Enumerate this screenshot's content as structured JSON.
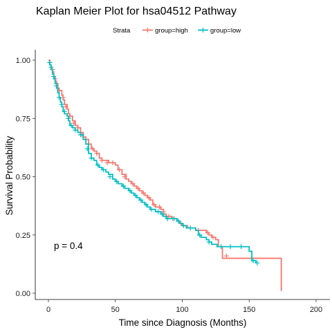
{
  "chart_data": {
    "type": "line",
    "subtype": "kaplan-meier-step",
    "title": "Kaplan Meier Plot for hsa04512 Pathway",
    "xlabel": "Time since Diagnosis (Months)",
    "ylabel": "Survival Probability",
    "xlim": [
      0,
      200
    ],
    "ylim": [
      0,
      1
    ],
    "x_ticks": [
      "0",
      "50",
      "100",
      "150",
      "200"
    ],
    "y_ticks": [
      "0.00",
      "0.25",
      "0.50",
      "0.75",
      "1.00"
    ],
    "x_tick_values": [
      0,
      50,
      100,
      150,
      200
    ],
    "y_tick_values": [
      0,
      0.25,
      0.5,
      0.75,
      1
    ],
    "grid": false,
    "legend_title": "Strata",
    "legend_position": "top",
    "annotation": "p = 0.4",
    "series": [
      {
        "name": "group=high",
        "color": "#F8766D",
        "steps": [
          [
            0,
            1.0
          ],
          [
            1,
            0.98
          ],
          [
            2,
            0.96
          ],
          [
            3,
            0.95
          ],
          [
            4,
            0.93
          ],
          [
            5,
            0.91
          ],
          [
            6,
            0.9
          ],
          [
            7,
            0.88
          ],
          [
            8,
            0.87
          ],
          [
            10,
            0.85
          ],
          [
            11,
            0.83
          ],
          [
            12,
            0.81
          ],
          [
            14,
            0.79
          ],
          [
            15,
            0.77
          ],
          [
            16,
            0.76
          ],
          [
            18,
            0.74
          ],
          [
            20,
            0.72
          ],
          [
            22,
            0.71
          ],
          [
            24,
            0.69
          ],
          [
            26,
            0.67
          ],
          [
            28,
            0.66
          ],
          [
            30,
            0.64
          ],
          [
            32,
            0.62
          ],
          [
            34,
            0.61
          ],
          [
            36,
            0.6
          ],
          [
            38,
            0.58
          ],
          [
            40,
            0.57
          ],
          [
            45,
            0.56
          ],
          [
            50,
            0.55
          ],
          [
            52,
            0.53
          ],
          [
            55,
            0.51
          ],
          [
            58,
            0.49
          ],
          [
            60,
            0.48
          ],
          [
            62,
            0.47
          ],
          [
            64,
            0.46
          ],
          [
            66,
            0.45
          ],
          [
            68,
            0.44
          ],
          [
            70,
            0.43
          ],
          [
            72,
            0.42
          ],
          [
            74,
            0.41
          ],
          [
            76,
            0.4
          ],
          [
            78,
            0.38
          ],
          [
            80,
            0.37
          ],
          [
            84,
            0.36
          ],
          [
            86,
            0.34
          ],
          [
            88,
            0.33
          ],
          [
            92,
            0.32
          ],
          [
            96,
            0.31
          ],
          [
            98,
            0.3
          ],
          [
            100,
            0.29
          ],
          [
            104,
            0.28
          ],
          [
            110,
            0.27
          ],
          [
            116,
            0.27
          ],
          [
            118,
            0.26
          ],
          [
            120,
            0.25
          ],
          [
            122,
            0.24
          ],
          [
            125,
            0.23
          ],
          [
            127,
            0.2
          ],
          [
            130,
            0.15
          ],
          [
            145,
            0.15
          ],
          [
            150,
            0.15
          ],
          [
            174,
            0.15
          ],
          [
            174,
            0.01
          ]
        ],
        "censored": [
          [
            1,
            0.99
          ],
          [
            3,
            0.96
          ],
          [
            5,
            0.92
          ],
          [
            8,
            0.87
          ],
          [
            11,
            0.84
          ],
          [
            13,
            0.8
          ],
          [
            16,
            0.76
          ],
          [
            19,
            0.73
          ],
          [
            22,
            0.71
          ],
          [
            25,
            0.68
          ],
          [
            30,
            0.64
          ],
          [
            33,
            0.62
          ],
          [
            36,
            0.6
          ],
          [
            40,
            0.57
          ],
          [
            44,
            0.56
          ],
          [
            48,
            0.56
          ],
          [
            53,
            0.53
          ],
          [
            57,
            0.5
          ],
          [
            63,
            0.47
          ],
          [
            67,
            0.45
          ],
          [
            71,
            0.43
          ],
          [
            75,
            0.41
          ],
          [
            79,
            0.38
          ],
          [
            83,
            0.37
          ],
          [
            86,
            0.35
          ],
          [
            90,
            0.33
          ],
          [
            94,
            0.32
          ],
          [
            99,
            0.3
          ],
          [
            106,
            0.28
          ],
          [
            112,
            0.27
          ],
          [
            119,
            0.26
          ],
          [
            123,
            0.24
          ],
          [
            133,
            0.16
          ]
        ]
      },
      {
        "name": "group=low",
        "color": "#00BFC4",
        "steps": [
          [
            0,
            0.99
          ],
          [
            1,
            0.98
          ],
          [
            2,
            0.96
          ],
          [
            3,
            0.94
          ],
          [
            4,
            0.92
          ],
          [
            5,
            0.9
          ],
          [
            6,
            0.88
          ],
          [
            7,
            0.86
          ],
          [
            8,
            0.84
          ],
          [
            9,
            0.82
          ],
          [
            10,
            0.8
          ],
          [
            11,
            0.78
          ],
          [
            12,
            0.77
          ],
          [
            14,
            0.76
          ],
          [
            15,
            0.74
          ],
          [
            16,
            0.72
          ],
          [
            18,
            0.71
          ],
          [
            20,
            0.7
          ],
          [
            22,
            0.69
          ],
          [
            24,
            0.68
          ],
          [
            26,
            0.66
          ],
          [
            28,
            0.64
          ],
          [
            30,
            0.6
          ],
          [
            32,
            0.58
          ],
          [
            34,
            0.57
          ],
          [
            36,
            0.55
          ],
          [
            38,
            0.54
          ],
          [
            40,
            0.53
          ],
          [
            43,
            0.52
          ],
          [
            45,
            0.51
          ],
          [
            48,
            0.49
          ],
          [
            50,
            0.48
          ],
          [
            52,
            0.47
          ],
          [
            55,
            0.46
          ],
          [
            57,
            0.45
          ],
          [
            60,
            0.44
          ],
          [
            62,
            0.43
          ],
          [
            64,
            0.42
          ],
          [
            66,
            0.41
          ],
          [
            68,
            0.4
          ],
          [
            70,
            0.39
          ],
          [
            72,
            0.38
          ],
          [
            74,
            0.37
          ],
          [
            76,
            0.36
          ],
          [
            80,
            0.35
          ],
          [
            84,
            0.34
          ],
          [
            86,
            0.33
          ],
          [
            88,
            0.32
          ],
          [
            96,
            0.31
          ],
          [
            98,
            0.3
          ],
          [
            100,
            0.29
          ],
          [
            103,
            0.28
          ],
          [
            110,
            0.27
          ],
          [
            112,
            0.25
          ],
          [
            114,
            0.24
          ],
          [
            118,
            0.23
          ],
          [
            120,
            0.22
          ],
          [
            122,
            0.21
          ],
          [
            126,
            0.2
          ],
          [
            130,
            0.2
          ],
          [
            140,
            0.2
          ],
          [
            150,
            0.2
          ],
          [
            150,
            0.18
          ],
          [
            152,
            0.14
          ],
          [
            155,
            0.13
          ]
        ],
        "censored": [
          [
            1,
            0.99
          ],
          [
            2,
            0.97
          ],
          [
            4,
            0.93
          ],
          [
            6,
            0.89
          ],
          [
            8,
            0.84
          ],
          [
            10,
            0.81
          ],
          [
            12,
            0.78
          ],
          [
            15,
            0.75
          ],
          [
            17,
            0.72
          ],
          [
            20,
            0.7
          ],
          [
            24,
            0.68
          ],
          [
            29,
            0.62
          ],
          [
            32,
            0.58
          ],
          [
            37,
            0.55
          ],
          [
            41,
            0.53
          ],
          [
            46,
            0.5
          ],
          [
            51,
            0.48
          ],
          [
            56,
            0.46
          ],
          [
            61,
            0.44
          ],
          [
            65,
            0.42
          ],
          [
            69,
            0.4
          ],
          [
            73,
            0.38
          ],
          [
            77,
            0.36
          ],
          [
            82,
            0.35
          ],
          [
            85,
            0.34
          ],
          [
            89,
            0.32
          ],
          [
            93,
            0.32
          ],
          [
            97,
            0.31
          ],
          [
            101,
            0.29
          ],
          [
            106,
            0.28
          ],
          [
            113,
            0.25
          ],
          [
            120,
            0.22
          ],
          [
            129,
            0.2
          ],
          [
            136,
            0.2
          ],
          [
            144,
            0.2
          ],
          [
            153,
            0.14
          ],
          [
            156,
            0.13
          ]
        ]
      }
    ]
  }
}
